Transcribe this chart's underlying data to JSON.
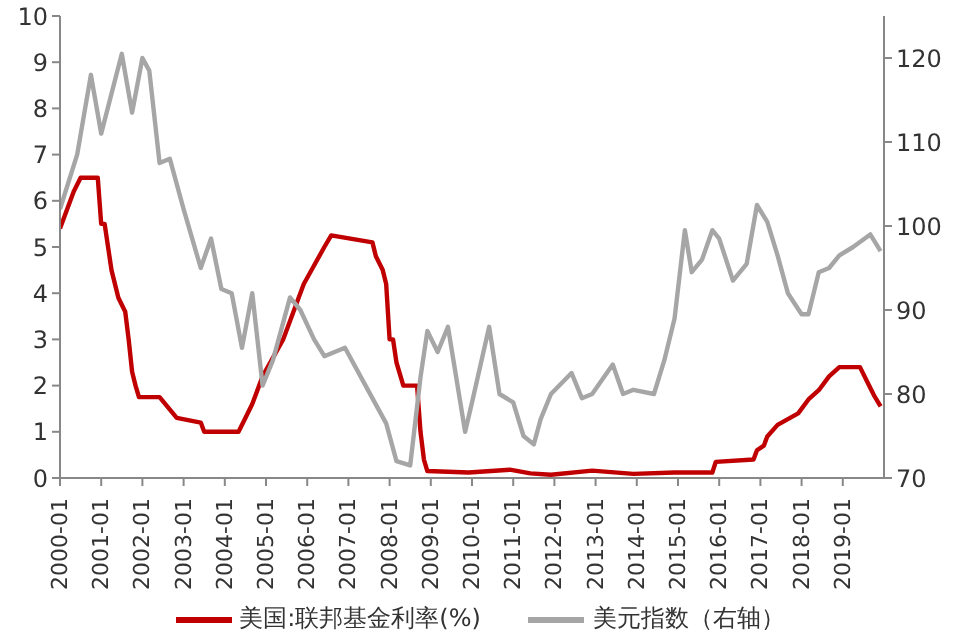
{
  "chart_data": {
    "type": "line",
    "legend": "bottom",
    "marker": "none",
    "line_style": "solid",
    "xlim": [
      "2000-01",
      "2020-01"
    ],
    "xticks": [
      "2000-01",
      "2001-01",
      "2002-01",
      "2003-01",
      "2004-01",
      "2005-01",
      "2006-01",
      "2007-01",
      "2008-01",
      "2009-01",
      "2010-01",
      "2011-01",
      "2012-01",
      "2013-01",
      "2014-01",
      "2015-01",
      "2016-01",
      "2017-01",
      "2018-01",
      "2019-01"
    ],
    "ylim": [
      0,
      10
    ],
    "yticks": [
      0,
      1,
      2,
      3,
      4,
      5,
      6,
      7,
      8,
      9,
      10
    ],
    "y2lim": [
      70,
      125
    ],
    "y2ticks": [
      70,
      80,
      90,
      100,
      110,
      120
    ],
    "series": [
      {
        "name": "美国:联邦基金利率(%)",
        "color": "#c00000",
        "x": [
          "2000-01",
          "2000-03",
          "2000-05",
          "2000-07",
          "2000-12",
          "2001-01",
          "2001-02",
          "2001-03",
          "2001-04",
          "2001-06",
          "2001-08",
          "2001-09",
          "2001-10",
          "2001-11",
          "2001-12",
          "2002-06",
          "2002-11",
          "2003-06",
          "2003-07",
          "2004-05",
          "2004-07",
          "2004-09",
          "2004-12",
          "2005-03",
          "2005-06",
          "2005-09",
          "2005-12",
          "2006-03",
          "2006-06",
          "2006-08",
          "2007-08",
          "2007-09",
          "2007-11",
          "2007-12",
          "2008-01",
          "2008-02",
          "2008-03",
          "2008-05",
          "2008-09",
          "2008-10",
          "2008-11",
          "2008-12",
          "2009-12",
          "2010-12",
          "2011-06",
          "2011-12",
          "2012-12",
          "2013-12",
          "2014-12",
          "2015-11",
          "2015-12",
          "2016-11",
          "2016-12",
          "2017-02",
          "2017-03",
          "2017-06",
          "2017-12",
          "2018-03",
          "2018-06",
          "2018-09",
          "2018-12",
          "2019-06",
          "2019-08",
          "2019-10",
          "2019-12"
        ],
        "values": [
          5.4,
          5.8,
          6.2,
          6.5,
          6.5,
          5.5,
          5.5,
          5.0,
          4.5,
          3.9,
          3.6,
          3.0,
          2.3,
          2.0,
          1.75,
          1.75,
          1.3,
          1.2,
          1.0,
          1.0,
          1.3,
          1.6,
          2.2,
          2.6,
          3.0,
          3.6,
          4.2,
          4.6,
          5.0,
          5.25,
          5.1,
          4.8,
          4.5,
          4.2,
          3.0,
          3.0,
          2.5,
          2.0,
          2.0,
          1.0,
          0.4,
          0.15,
          0.12,
          0.18,
          0.1,
          0.07,
          0.16,
          0.09,
          0.12,
          0.12,
          0.35,
          0.4,
          0.6,
          0.7,
          0.9,
          1.15,
          1.4,
          1.7,
          1.9,
          2.2,
          2.4,
          2.4,
          2.1,
          1.8,
          1.55
        ]
      },
      {
        "name": "美元指数（右轴）",
        "color": "#a6a6a6",
        "axis": "y2",
        "x": [
          "2000-01",
          "2000-06",
          "2000-10",
          "2001-01",
          "2001-07",
          "2001-10",
          "2002-01",
          "2002-03",
          "2002-06",
          "2002-09",
          "2003-01",
          "2003-06",
          "2003-09",
          "2003-12",
          "2004-03",
          "2004-06",
          "2004-09",
          "2004-12",
          "2005-03",
          "2005-08",
          "2005-11",
          "2006-03",
          "2006-06",
          "2006-12",
          "2007-06",
          "2007-12",
          "2008-03",
          "2008-07",
          "2008-10",
          "2008-12",
          "2009-03",
          "2009-06",
          "2009-11",
          "2010-01",
          "2010-06",
          "2010-09",
          "2011-01",
          "2011-04",
          "2011-07",
          "2011-09",
          "2011-12",
          "2012-06",
          "2012-09",
          "2012-12",
          "2013-06",
          "2013-09",
          "2013-12",
          "2014-06",
          "2014-09",
          "2014-12",
          "2015-03",
          "2015-05",
          "2015-08",
          "2015-11",
          "2016-01",
          "2016-05",
          "2016-09",
          "2016-12",
          "2017-03",
          "2017-06",
          "2017-09",
          "2018-01",
          "2018-03",
          "2018-06",
          "2018-09",
          "2018-12",
          "2019-04",
          "2019-09",
          "2019-12"
        ],
        "values": [
          102,
          108.5,
          118,
          111,
          120.5,
          113.5,
          120,
          118.5,
          107.5,
          108,
          102,
          95,
          98.5,
          92.5,
          92,
          85.5,
          92,
          81,
          84,
          91.5,
          90,
          86.5,
          84.5,
          85.5,
          81,
          76.5,
          72,
          71.5,
          82,
          87.5,
          85,
          88,
          75.5,
          79,
          88,
          80,
          79,
          75,
          74,
          77,
          80,
          82.5,
          79.5,
          80,
          83.5,
          80,
          80.5,
          80,
          84,
          89,
          99.5,
          94.5,
          96,
          99.5,
          98.5,
          93.5,
          95.5,
          102.5,
          100.5,
          96.5,
          92,
          89.5,
          89.5,
          94.5,
          95,
          96.5,
          97.5,
          99,
          97
        ]
      }
    ]
  }
}
